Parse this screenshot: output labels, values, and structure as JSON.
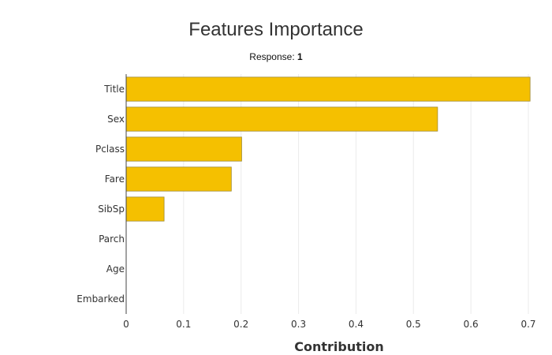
{
  "chart_data": {
    "type": "bar",
    "orientation": "horizontal",
    "title": "Features Importance",
    "subtitle": {
      "label": "Response: ",
      "value": "1"
    },
    "xlabel": "Contribution",
    "ylabel": "",
    "xlim": [
      0,
      0.7
    ],
    "x_ticks": [
      "0",
      "0.1",
      "0.2",
      "0.3",
      "0.4",
      "0.5",
      "0.6",
      "0.7"
    ],
    "categories": [
      "Title",
      "Sex",
      "Pclass",
      "Fare",
      "SibSp",
      "Parch",
      "Age",
      "Embarked"
    ],
    "values": [
      0.703,
      0.542,
      0.201,
      0.183,
      0.066,
      0.0,
      0.0,
      0.0
    ],
    "grid": true,
    "colors": {
      "bar_fill": "#F5C000",
      "bar_stroke": "#A08A2E",
      "grid": "#EBEBEB",
      "axis": "#444444",
      "text": "#333333"
    }
  }
}
